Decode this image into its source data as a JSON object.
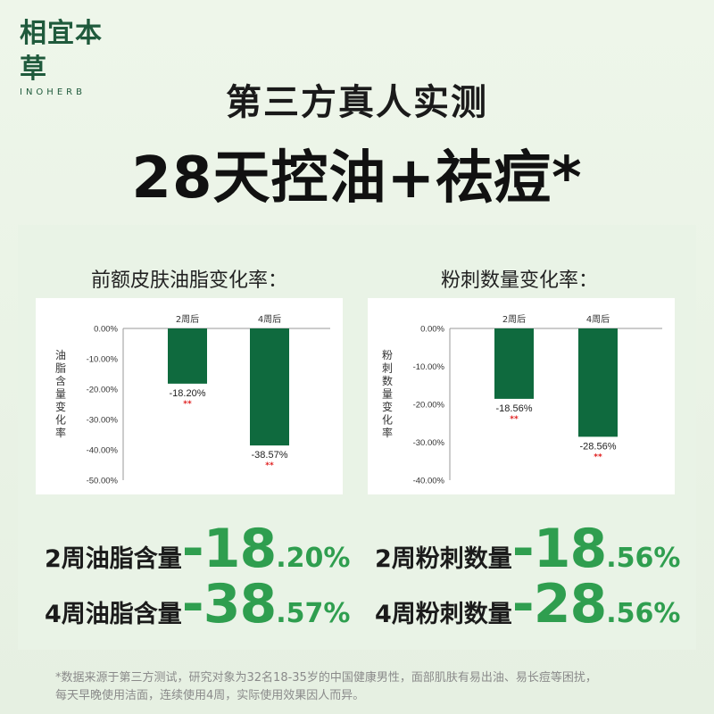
{
  "brand": {
    "name_cn": "相宜本草",
    "name_en": "INOHERB"
  },
  "headline": {
    "line1": "第三方真人实测",
    "line2": "28天控油+祛痘*"
  },
  "sections": {
    "oil": {
      "title": "前额皮肤油脂变化率："
    },
    "acne": {
      "title": "粉刺数量变化率："
    }
  },
  "stats": [
    {
      "label": "2周油脂含量",
      "big": "-18",
      "small": ".20%"
    },
    {
      "label": "4周油脂含量",
      "big": "-38",
      "small": ".57%"
    },
    {
      "label": "2周粉刺数量",
      "big": "-18",
      "small": ".56%"
    },
    {
      "label": "4周粉刺数量",
      "big": "-28",
      "small": ".56%"
    }
  ],
  "footnote": {
    "line1": "*数据来源于第三方测试，研究对象为32名18-35岁的中国健康男性，面部肌肤有易出油、易长痘等困扰，",
    "line2": "每天早晚使用洁面，连续使用4周，实际使用效果因人而异。"
  },
  "colors": {
    "bar": "#0f6a3e",
    "accent_green": "#2f9e4f",
    "significance": "#e02020"
  },
  "chart_data": [
    {
      "type": "bar",
      "title": "前额皮肤油脂变化率：",
      "ylabel": "油脂含量变化率",
      "categories": [
        "2周后",
        "4周后"
      ],
      "values": [
        -18.2,
        -38.57
      ],
      "value_labels": [
        "-18.20%",
        "-38.57%"
      ],
      "significance": [
        "**",
        "**"
      ],
      "yticks": [
        "0.00%",
        "-10.00%",
        "-20.00%",
        "-30.00%",
        "-40.00%",
        "-50.00%"
      ],
      "ylim": [
        -50,
        0
      ],
      "grid": false
    },
    {
      "type": "bar",
      "title": "粉刺数量变化率：",
      "ylabel": "粉刺数量变化率",
      "categories": [
        "2周后",
        "4周后"
      ],
      "values": [
        -18.56,
        -28.56
      ],
      "value_labels": [
        "-18.56%",
        "-28.56%"
      ],
      "significance": [
        "**",
        "**"
      ],
      "yticks": [
        "0.00%",
        "-10.00%",
        "-20.00%",
        "-30.00%",
        "-40.00%"
      ],
      "ylim": [
        -40,
        0
      ],
      "grid": false
    }
  ]
}
